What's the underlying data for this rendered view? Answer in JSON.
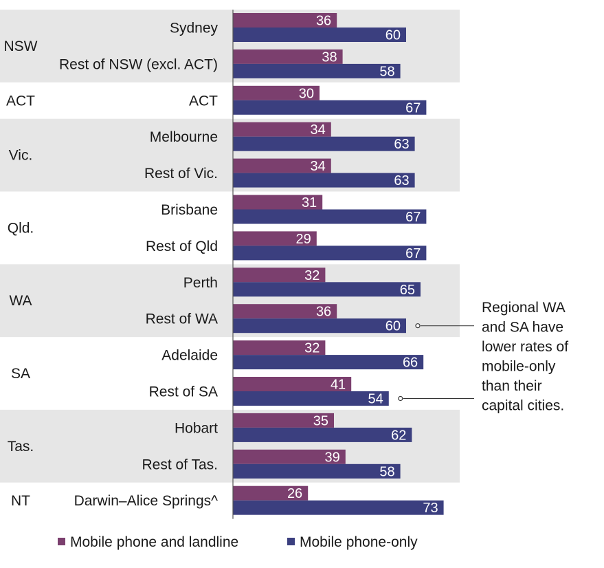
{
  "chart_data": {
    "type": "bar",
    "orientation": "horizontal",
    "groups": [
      {
        "state": "NSW",
        "shaded": true,
        "categories": [
          "Sydney",
          "Rest of NSW (excl. ACT)"
        ]
      },
      {
        "state": "ACT",
        "shaded": false,
        "categories": [
          "ACT"
        ]
      },
      {
        "state": "Vic.",
        "shaded": true,
        "categories": [
          "Melbourne",
          "Rest of Vic."
        ]
      },
      {
        "state": "Qld.",
        "shaded": false,
        "categories": [
          "Brisbane",
          "Rest of Qld"
        ]
      },
      {
        "state": "WA",
        "shaded": true,
        "categories": [
          "Perth",
          "Rest of WA"
        ]
      },
      {
        "state": "SA",
        "shaded": false,
        "categories": [
          "Adelaide",
          "Rest of SA"
        ]
      },
      {
        "state": "Tas.",
        "shaded": true,
        "categories": [
          "Hobart",
          "Rest of Tas."
        ]
      },
      {
        "state": "NT",
        "shaded": false,
        "categories": [
          "Darwin–Alice Springs^"
        ]
      }
    ],
    "categories": [
      "Sydney",
      "Rest of NSW (excl. ACT)",
      "ACT",
      "Melbourne",
      "Rest of Vic.",
      "Brisbane",
      "Rest of Qld",
      "Perth",
      "Rest of WA",
      "Adelaide",
      "Rest of SA",
      "Hobart",
      "Rest of Tas.",
      "Darwin–Alice Springs^"
    ],
    "series": [
      {
        "name": "Mobile phone and landline",
        "color": "#7b3f6e",
        "values": [
          36,
          38,
          30,
          34,
          34,
          31,
          29,
          32,
          36,
          32,
          41,
          35,
          39,
          26
        ]
      },
      {
        "name": "Mobile phone-only",
        "color": "#3b3f7f",
        "values": [
          60,
          58,
          67,
          63,
          63,
          67,
          67,
          65,
          60,
          66,
          54,
          62,
          58,
          73
        ]
      }
    ],
    "xlim": [
      0,
      78
    ],
    "legend_position": "bottom",
    "annotation": {
      "lines": [
        "Regional WA",
        "and SA have",
        "lower rates of",
        "mobile-only",
        "than their",
        "capital cities."
      ],
      "targets": [
        "Rest of WA",
        "Rest of SA"
      ]
    },
    "band_color": "#e6e6e6"
  }
}
